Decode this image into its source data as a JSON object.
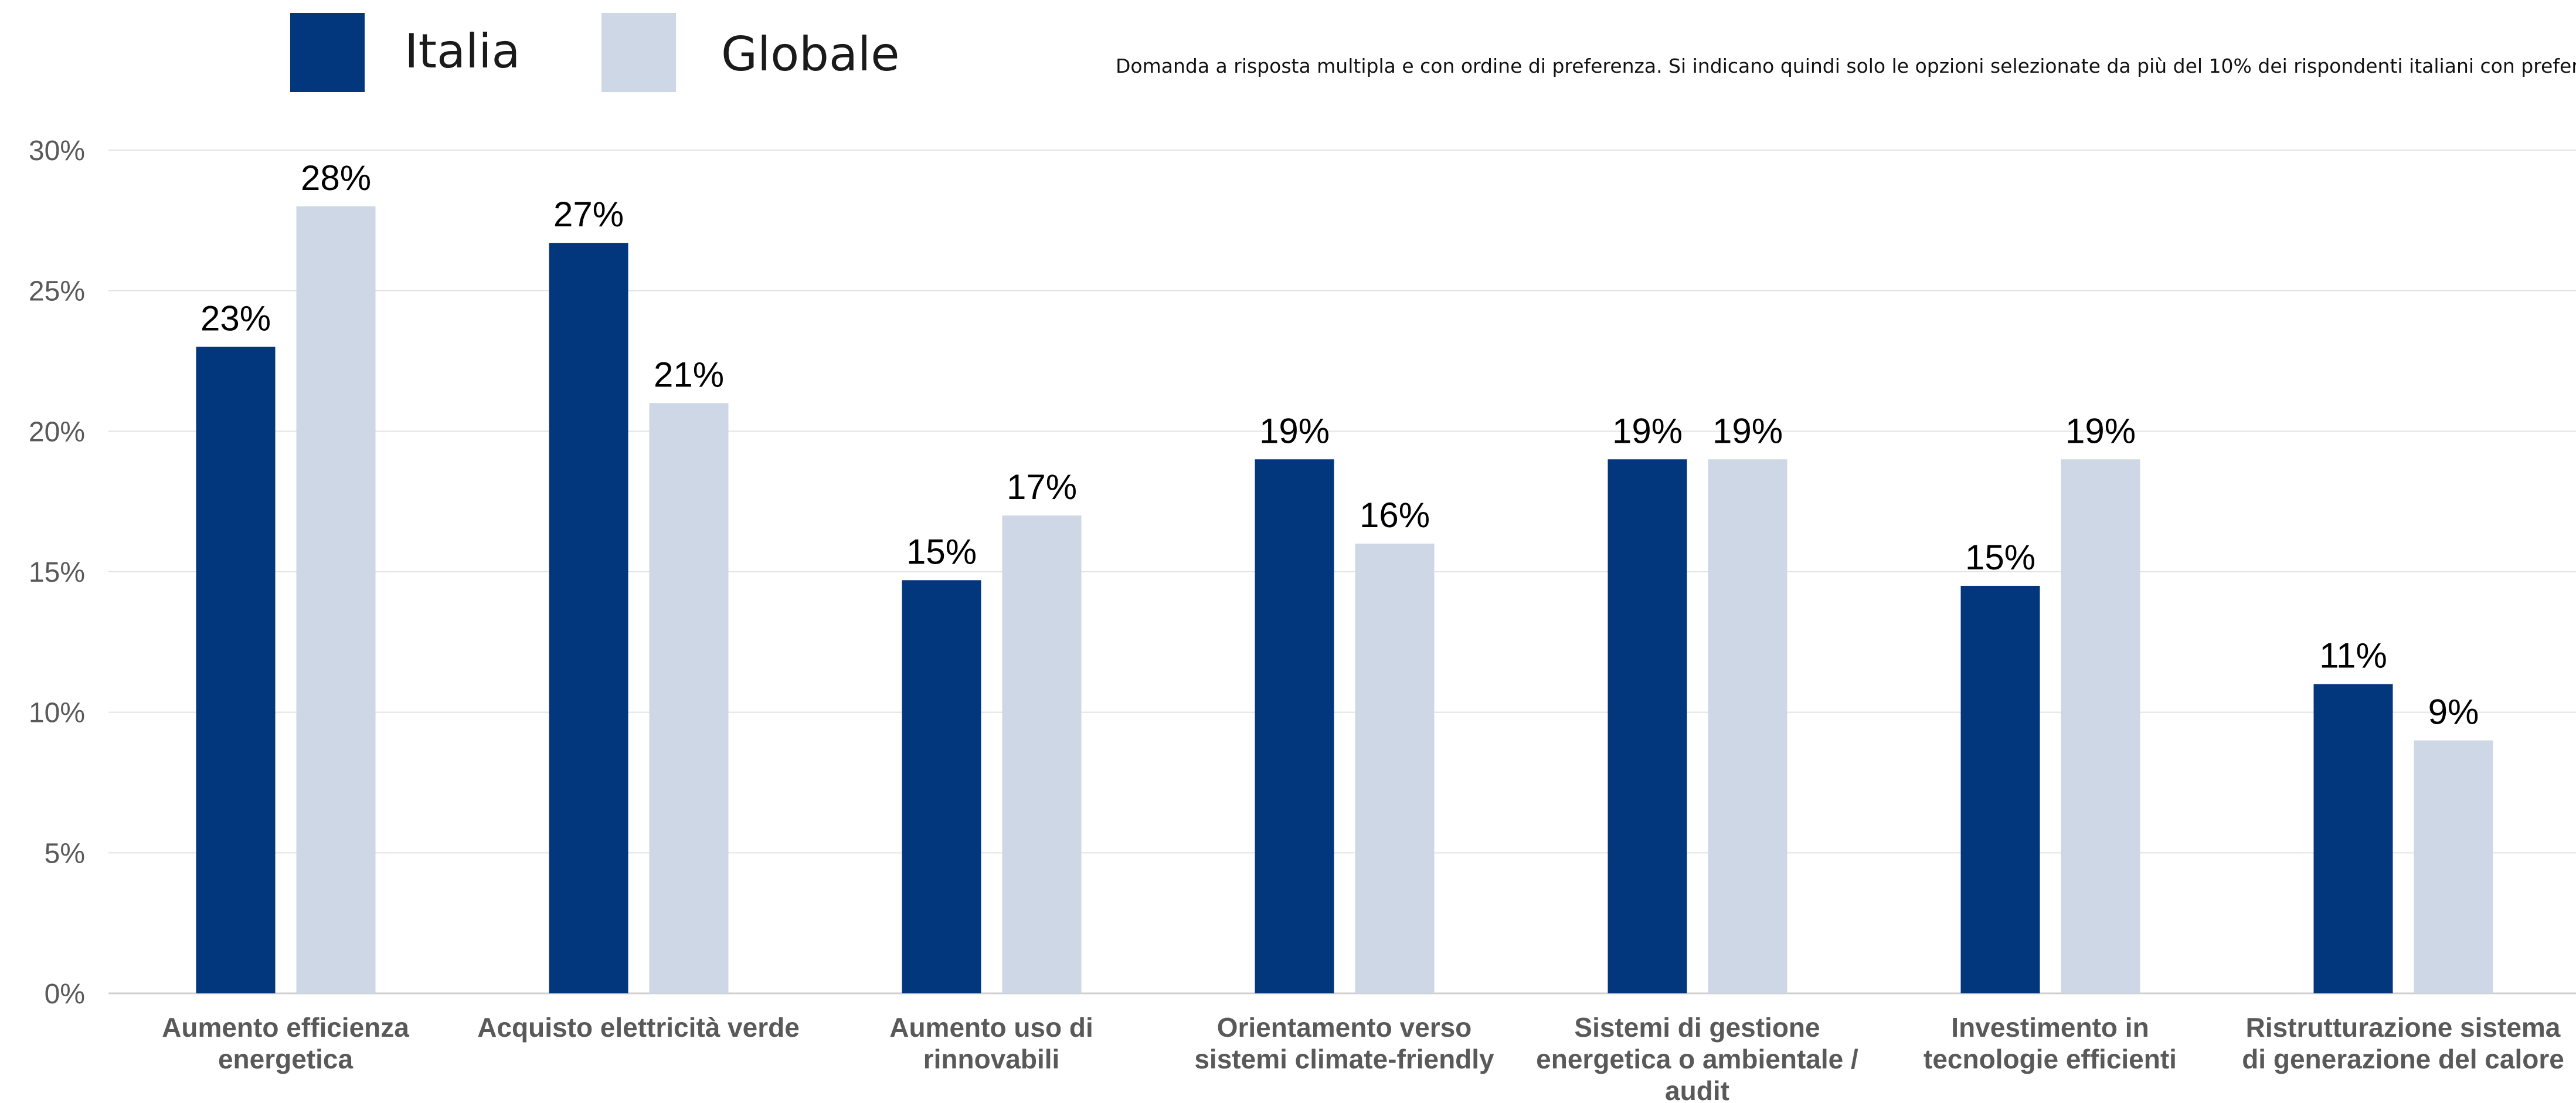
{
  "legend": {
    "items": [
      {
        "label": "Italia",
        "color": "#02367d"
      },
      {
        "label": "Globale",
        "color": "#cdd7e5"
      }
    ]
  },
  "note": "Domanda a risposta multipla e con ordine di preferenza. Si indicano quindi solo le opzioni selezionate da più del 10% dei rispondenti italiani con preferenza mas",
  "chart_data": {
    "type": "bar",
    "categories": [
      [
        "Aumento efficienza",
        "energetica"
      ],
      [
        "Acquisto elettricità verde"
      ],
      [
        "Aumento uso di",
        "rinnovabili"
      ],
      [
        "Orientamento verso",
        "sistemi climate-friendly"
      ],
      [
        "Sistemi di gestione",
        "energetica o ambientale /",
        "audit"
      ],
      [
        "Investimento in",
        "tecnologie efficienti"
      ],
      [
        "Ristrutturazione sistema",
        "di generazione del calore"
      ]
    ],
    "series": [
      {
        "name": "Italia",
        "color": "#02367d",
        "values": [
          23,
          26.7,
          14.7,
          19,
          19,
          14.5,
          11
        ],
        "labels": [
          "23%",
          "27%",
          "15%",
          "19%",
          "19%",
          "15%",
          "11%"
        ]
      },
      {
        "name": "Globale",
        "color": "#cdd7e5",
        "values": [
          28,
          21,
          17,
          16,
          19,
          19,
          9
        ],
        "labels": [
          "28%",
          "21%",
          "17%",
          "16%",
          "19%",
          "19%",
          "9%"
        ]
      }
    ],
    "yticks": [
      "0%",
      "5%",
      "10%",
      "15%",
      "20%",
      "25%",
      "30%"
    ],
    "ylim": [
      0,
      30
    ],
    "grid": true,
    "legend_position": "top-left",
    "title": "",
    "xlabel": "",
    "ylabel": ""
  }
}
